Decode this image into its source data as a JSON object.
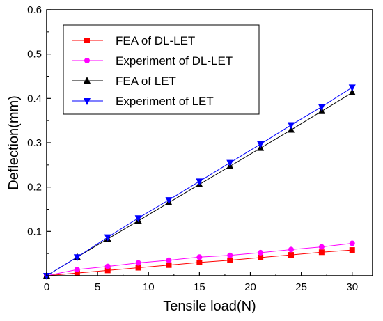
{
  "chart_data": {
    "type": "line",
    "xlabel": "Tensile load(N)",
    "ylabel": "Deflection(mm)",
    "xlim": [
      0,
      32
    ],
    "ylim": [
      0,
      0.6
    ],
    "xticks": [
      0,
      5,
      10,
      15,
      20,
      25,
      30
    ],
    "yticks": [
      0.1,
      0.2,
      0.3,
      0.4,
      0.5,
      0.6
    ],
    "origin_label": "0",
    "x": [
      0,
      3,
      6,
      9,
      12,
      15,
      18,
      21,
      24,
      27,
      30
    ],
    "legend_position": "top-left",
    "series": [
      {
        "name": "FEA of DL-LET",
        "color": "#ff0000",
        "marker": "square",
        "values": [
          0,
          0.006,
          0.012,
          0.018,
          0.024,
          0.03,
          0.035,
          0.041,
          0.047,
          0.053,
          0.058
        ]
      },
      {
        "name": "Experiment  of DL-LET",
        "color": "#ff00ff",
        "marker": "circle",
        "values": [
          0,
          0.014,
          0.021,
          0.029,
          0.035,
          0.042,
          0.046,
          0.052,
          0.059,
          0.065,
          0.073
        ]
      },
      {
        "name": "FEA of LET",
        "color": "#000000",
        "marker": "triangle-up",
        "values": [
          0,
          0.042,
          0.083,
          0.124,
          0.165,
          0.206,
          0.247,
          0.288,
          0.329,
          0.371,
          0.413
        ]
      },
      {
        "name": "Experiment of LET",
        "color": "#0000ff",
        "marker": "triangle-down",
        "values": [
          0,
          0.042,
          0.087,
          0.13,
          0.171,
          0.213,
          0.255,
          0.297,
          0.34,
          0.381,
          0.425
        ]
      }
    ]
  }
}
